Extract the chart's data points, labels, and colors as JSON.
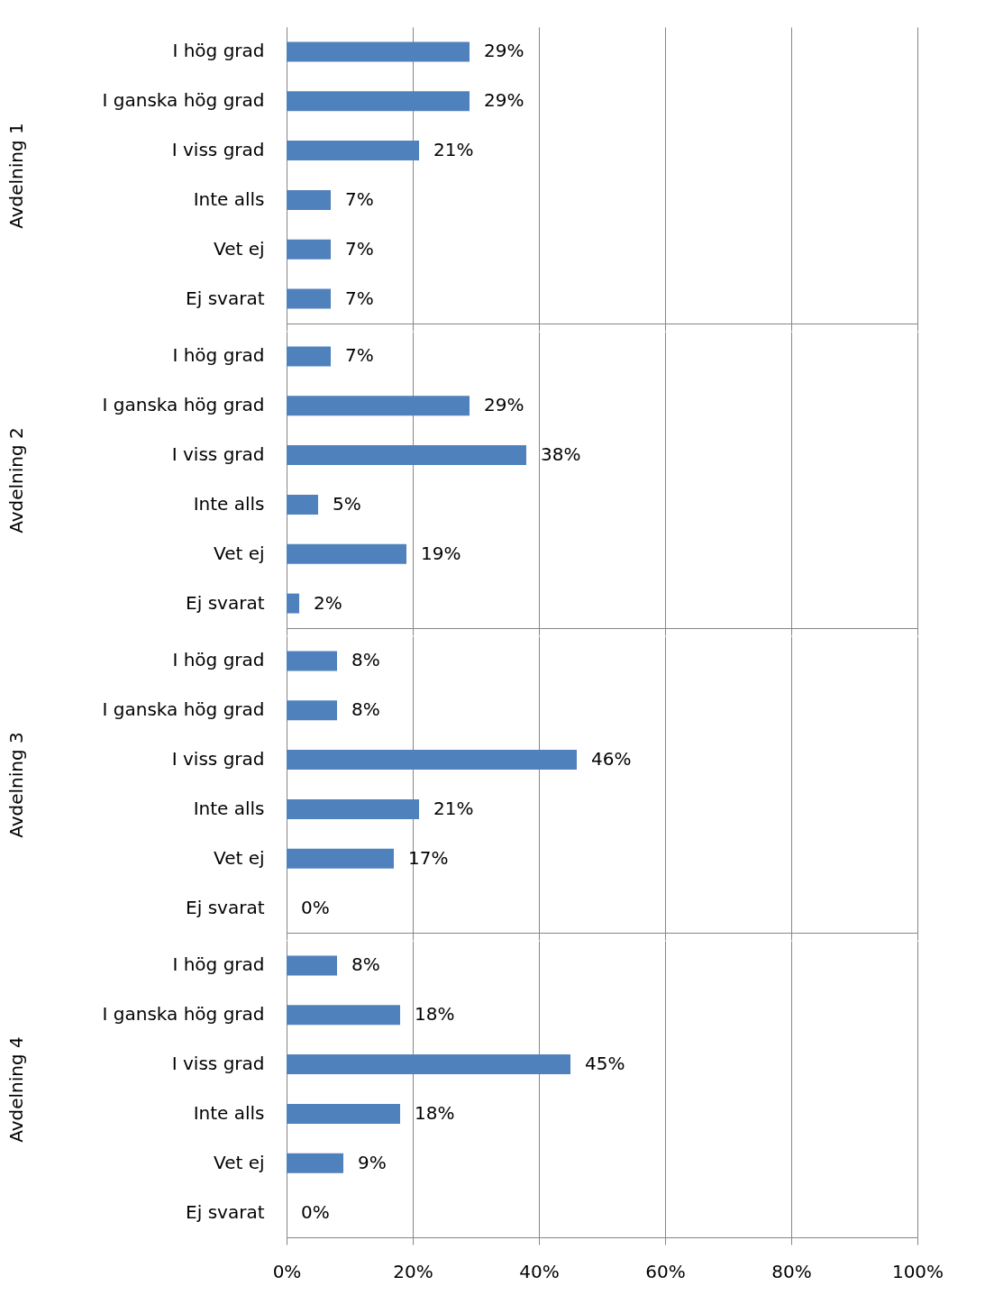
{
  "chart_data": [
    {
      "type": "bar",
      "orientation": "horizontal",
      "ylabel": "Avdelning 1",
      "categories": [
        "I hög grad",
        "I ganska hög grad",
        "I viss grad",
        "Inte alls",
        "Vet ej",
        "Ej svarat"
      ],
      "values": [
        29,
        29,
        21,
        7,
        7,
        7
      ],
      "value_labels": [
        "29%",
        "29%",
        "21%",
        "7%",
        "7%",
        "7%"
      ],
      "color": "#4f81bd",
      "xlim": [
        0,
        100
      ],
      "xticks": [
        0,
        20,
        40,
        60,
        80,
        100
      ],
      "grid": "x",
      "tick_labels": "y"
    },
    {
      "type": "bar",
      "orientation": "horizontal",
      "ylabel": "Avdelning 2",
      "categories": [
        "I hög grad",
        "I ganska hög grad",
        "I viss grad",
        "Inte alls",
        "Vet ej",
        "Ej svarat"
      ],
      "values": [
        7,
        29,
        38,
        5,
        19,
        2
      ],
      "value_labels": [
        "7%",
        "29%",
        "38%",
        "5%",
        "19%",
        "2%"
      ],
      "color": "#4f81bd",
      "xlim": [
        0,
        100
      ],
      "xticks": [
        0,
        20,
        40,
        60,
        80,
        100
      ],
      "grid": "x",
      "tick_labels": "y"
    },
    {
      "type": "bar",
      "orientation": "horizontal",
      "ylabel": "Avdelning 3",
      "categories": [
        "I hög grad",
        "I ganska hög grad",
        "I viss grad",
        "Inte alls",
        "Vet ej",
        "Ej svarat"
      ],
      "values": [
        8,
        8,
        46,
        21,
        17,
        0
      ],
      "value_labels": [
        "8%",
        "8%",
        "46%",
        "21%",
        "17%",
        "0%"
      ],
      "color": "#4f81bd",
      "xlim": [
        0,
        100
      ],
      "xticks": [
        0,
        20,
        40,
        60,
        80,
        100
      ],
      "grid": "x",
      "tick_labels": "y"
    },
    {
      "type": "bar",
      "orientation": "horizontal",
      "ylabel": "Avdelning 4",
      "categories": [
        "I hög grad",
        "I ganska hög grad",
        "I viss grad",
        "Inte alls",
        "Vet ej",
        "Ej svarat"
      ],
      "values": [
        8,
        18,
        45,
        18,
        9,
        0
      ],
      "value_labels": [
        "8%",
        "18%",
        "45%",
        "18%",
        "9%",
        "0%"
      ],
      "color": "#4f81bd",
      "xlim": [
        0,
        100
      ],
      "xticks": [
        {
          "value": 0,
          "label": "0%"
        },
        {
          "value": 20,
          "label": "20%"
        },
        {
          "value": 40,
          "label": "40%"
        },
        {
          "value": 60,
          "label": "60%"
        },
        {
          "value": 80,
          "label": "80%"
        },
        {
          "value": 100,
          "label": "100%"
        }
      ],
      "grid": "x"
    }
  ]
}
